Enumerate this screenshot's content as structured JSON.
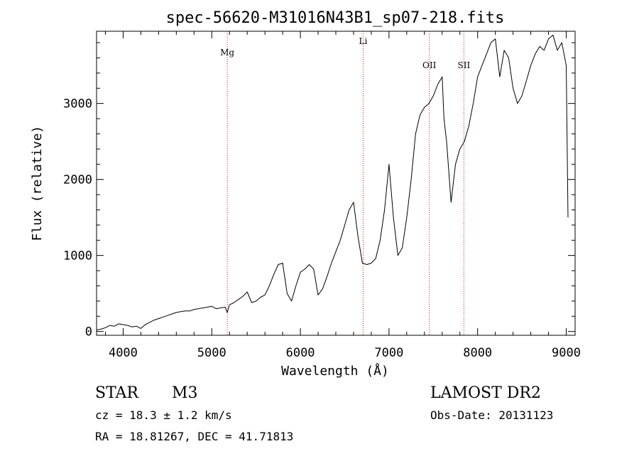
{
  "chart_data": {
    "type": "line",
    "title": "spec-56620-M31016N43B1_sp07-218.fits",
    "xlabel": "Wavelength (Å)",
    "ylabel": "Flux (relative)",
    "xlim": [
      3700,
      9100
    ],
    "ylim": [
      -50,
      3950
    ],
    "xticks": [
      4000,
      5000,
      6000,
      7000,
      8000,
      9000
    ],
    "yticks": [
      0,
      1000,
      2000,
      3000
    ],
    "line_markers": [
      {
        "label": "Mg",
        "x": 5175
      },
      {
        "label": "Li",
        "x": 6708
      },
      {
        "label": "OII",
        "x": 7455
      },
      {
        "label": "SII",
        "x": 7845
      }
    ],
    "series": [
      {
        "x": [
          3700,
          3750,
          3800,
          3850,
          3900,
          3950,
          4000,
          4050,
          4100,
          4150,
          4200,
          4250,
          4300,
          4350,
          4400,
          4450,
          4500,
          4550,
          4600,
          4650,
          4700,
          4750,
          4800,
          4850,
          4900,
          4950,
          5000,
          5050,
          5100,
          5150,
          5175,
          5200,
          5250,
          5300,
          5350,
          5400,
          5450,
          5500,
          5550,
          5600,
          5650,
          5700,
          5750,
          5800,
          5850,
          5900,
          5950,
          6000,
          6050,
          6100,
          6150,
          6200,
          6250,
          6300,
          6350,
          6400,
          6450,
          6500,
          6550,
          6600,
          6650,
          6700,
          6750,
          6800,
          6850,
          6900,
          6950,
          7000,
          7050,
          7100,
          7150,
          7200,
          7250,
          7300,
          7350,
          7400,
          7450,
          7500,
          7550,
          7600,
          7620,
          7650,
          7700,
          7750,
          7800,
          7850,
          7900,
          7950,
          8000,
          8050,
          8100,
          8150,
          8200,
          8250,
          8300,
          8350,
          8400,
          8450,
          8500,
          8550,
          8600,
          8650,
          8700,
          8750,
          8800,
          8850,
          8900,
          8950,
          9000,
          9020
        ],
        "values": [
          20,
          30,
          50,
          80,
          70,
          100,
          90,
          80,
          60,
          70,
          40,
          90,
          120,
          150,
          170,
          190,
          210,
          230,
          250,
          260,
          270,
          270,
          290,
          300,
          310,
          320,
          330,
          300,
          310,
          320,
          250,
          350,
          380,
          420,
          460,
          520,
          380,
          400,
          450,
          480,
          600,
          750,
          880,
          900,
          500,
          400,
          600,
          780,
          820,
          880,
          820,
          480,
          560,
          720,
          900,
          1050,
          1200,
          1400,
          1600,
          1700,
          1250,
          900,
          880,
          900,
          960,
          1200,
          1600,
          2200,
          1500,
          1000,
          1100,
          1500,
          2000,
          2600,
          2850,
          2950,
          3000,
          3100,
          3250,
          3350,
          2800,
          2500,
          1700,
          2200,
          2400,
          2500,
          2700,
          3000,
          3350,
          3500,
          3650,
          3800,
          3850,
          3350,
          3700,
          3600,
          3200,
          3000,
          3100,
          3300,
          3500,
          3650,
          3750,
          3700,
          3850,
          3900,
          3700,
          3800,
          3500,
          1500
        ]
      }
    ]
  },
  "footer": {
    "object_class": "STAR",
    "subclass": "M3",
    "survey": "LAMOST DR2",
    "velocity": "cz = 18.3 ± 1.2 km/s",
    "obs_date": "Obs-Date: 20131123",
    "coords": "RA =  18.81267, DEC =  41.71813"
  }
}
